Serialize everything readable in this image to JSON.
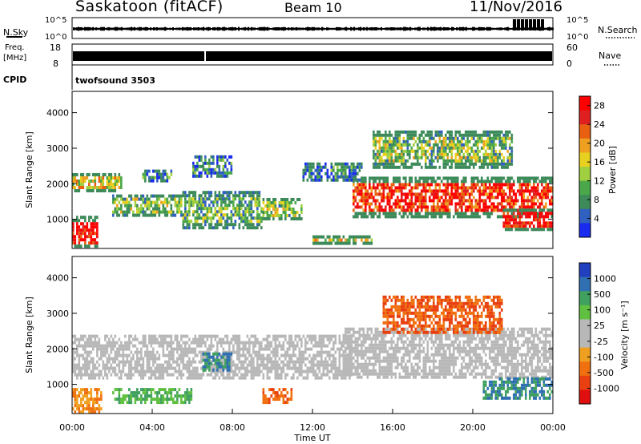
{
  "header": {
    "station": "Saskatoon (fitACF)",
    "beam": "Beam 10",
    "date": "11/Nov/2016"
  },
  "noise_panel": {
    "left_label": "N.Sky",
    "left_tick_top": "10^5",
    "left_tick_bottom": "10^0",
    "right_label": "N.Search",
    "right_tick_top": "10^5",
    "right_tick_bottom": "10^0"
  },
  "freq_panel": {
    "left_label_line1": "Freq.",
    "left_label_line2": "[MHz]",
    "left_tick_top": "18",
    "left_tick_bottom": "8",
    "right_label": "Nave",
    "right_tick_top": "60",
    "right_tick_bottom": "0"
  },
  "cpid_panel": {
    "label": "CPID",
    "program": "twofsound 3503"
  },
  "colors": {
    "power_scale": [
      "#1a2bf0",
      "#3060c0",
      "#3d8a5a",
      "#4aa84a",
      "#a0d040",
      "#e8d020",
      "#f0a020",
      "#e86010",
      "#e02020",
      "#ff0000"
    ],
    "velocity_scale": [
      "#2040c0",
      "#3070b0",
      "#40a060",
      "#60c040",
      "#b8b8b8",
      "#b8b8b8",
      "#f0a020",
      "#f07010",
      "#e84010",
      "#e01010"
    ],
    "ground_scatter": "#b8b8b8"
  },
  "chart_data": [
    {
      "type": "heatmap",
      "name": "power",
      "ylabel": "Slant Range [km]",
      "y_ticks": [
        "1000",
        "2000",
        "3000",
        "4000"
      ],
      "ylim": [
        180,
        4600
      ],
      "xlim": [
        0,
        24
      ],
      "colorbar": {
        "label": "Power [dB]",
        "ticks": [
          "4",
          "8",
          "12",
          "16",
          "20",
          "24",
          "28"
        ],
        "range": [
          0,
          30
        ]
      },
      "echo_regions": [
        {
          "t": [
            0.0,
            1.3
          ],
          "r": [
            250,
            1100
          ],
          "level": 28
        },
        {
          "t": [
            0.0,
            2.5
          ],
          "r": [
            1800,
            2300
          ],
          "level": 16
        },
        {
          "t": [
            2.0,
            5.5
          ],
          "r": [
            1100,
            1700
          ],
          "level": 12
        },
        {
          "t": [
            3.5,
            5.0
          ],
          "r": [
            2100,
            2400
          ],
          "level": 8
        },
        {
          "t": [
            5.5,
            9.5
          ],
          "r": [
            800,
            1800
          ],
          "level": 10
        },
        {
          "t": [
            6.0,
            8.0
          ],
          "r": [
            2200,
            2800
          ],
          "level": 6
        },
        {
          "t": [
            9.5,
            11.5
          ],
          "r": [
            1000,
            1600
          ],
          "level": 12
        },
        {
          "t": [
            11.5,
            14.5
          ],
          "r": [
            2100,
            2600
          ],
          "level": 6
        },
        {
          "t": [
            12.0,
            15.0
          ],
          "r": [
            350,
            550
          ],
          "level": 16
        },
        {
          "t": [
            14.0,
            24.0
          ],
          "r": [
            1100,
            2200
          ],
          "level": 26
        },
        {
          "t": [
            15.0,
            22.0
          ],
          "r": [
            2500,
            3500
          ],
          "level": 12
        },
        {
          "t": [
            21.5,
            24.0
          ],
          "r": [
            700,
            1300
          ],
          "level": 28
        }
      ]
    },
    {
      "type": "heatmap",
      "name": "velocity",
      "ylabel": "Slant Range [km]",
      "y_ticks": [
        "1000",
        "2000",
        "3000",
        "4000"
      ],
      "ylim": [
        180,
        4600
      ],
      "xlim": [
        0,
        24
      ],
      "xlabel": "Time UT",
      "x_ticks": [
        "00:00",
        "04:00",
        "08:00",
        "12:00",
        "16:00",
        "20:00",
        "00:00"
      ],
      "x_tick_values": [
        0,
        4,
        8,
        12,
        16,
        20,
        24
      ],
      "colorbar": {
        "label": "Velocity [m s⁻¹]",
        "ticks": [
          "1000",
          "500",
          "100",
          "25",
          "-25",
          "-100",
          "-500",
          "-1000"
        ]
      },
      "echo_regions": [
        {
          "t": [
            0.0,
            1.5
          ],
          "r": [
            250,
            900
          ],
          "kind": "flow",
          "v": -100
        },
        {
          "t": [
            0.0,
            14.0
          ],
          "r": [
            1200,
            2400
          ],
          "kind": "ground"
        },
        {
          "t": [
            2.0,
            6.0
          ],
          "r": [
            500,
            900
          ],
          "kind": "flow",
          "v": 100
        },
        {
          "t": [
            6.5,
            8.0
          ],
          "r": [
            1400,
            1900
          ],
          "kind": "flow",
          "v": 500
        },
        {
          "t": [
            9.5,
            11.0
          ],
          "r": [
            500,
            900
          ],
          "kind": "flow",
          "v": -500
        },
        {
          "t": [
            13.5,
            24.0
          ],
          "r": [
            1200,
            2600
          ],
          "kind": "ground"
        },
        {
          "t": [
            15.5,
            21.5
          ],
          "r": [
            2500,
            3500
          ],
          "kind": "flow",
          "v": -500
        },
        {
          "t": [
            20.5,
            24.0
          ],
          "r": [
            600,
            1200
          ],
          "kind": "flow",
          "v": 500
        }
      ]
    }
  ]
}
